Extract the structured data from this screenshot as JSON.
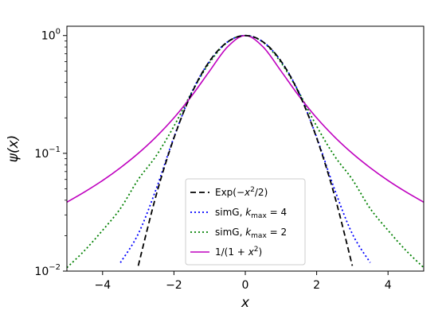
{
  "chart_data": {
    "type": "line",
    "xlabel": "x",
    "ylabel": "ψ(x)",
    "xscale": "linear",
    "yscale": "log",
    "xlim": [
      -5,
      5
    ],
    "ylim": [
      0.01,
      1.2
    ],
    "grid": false,
    "legend_position": "bottom-center",
    "x_ticks": [
      -4,
      -2,
      0,
      2,
      4
    ],
    "x_tick_labels": [
      "−4",
      "−2",
      "0",
      "2",
      "4"
    ],
    "y_ticks": [
      0.01,
      0.1,
      1
    ],
    "y_tick_label_bases": [
      "10",
      "10",
      "10"
    ],
    "y_tick_label_exponents": [
      "−2",
      "−1",
      "0"
    ],
    "x": [
      -5,
      -4.5,
      -4,
      -3.5,
      -3,
      -2.5,
      -2,
      -1.5,
      -1,
      -0.5,
      0,
      0.5,
      1,
      1.5,
      2,
      2.5,
      3,
      3.5,
      4,
      4.5,
      5
    ],
    "series": [
      {
        "name": "Exp(−x²/2)",
        "color": "#000000",
        "dash": "dashed",
        "values": [
          null,
          null,
          null,
          null,
          0.0111,
          0.0439,
          0.135,
          0.325,
          0.607,
          0.882,
          1.0,
          0.882,
          0.607,
          0.325,
          0.135,
          0.0439,
          0.0111,
          null,
          null,
          null,
          null
        ]
      },
      {
        "name": "simG, k_max = 4",
        "color": "#0000ff",
        "dash": "dotted",
        "values": [
          null,
          null,
          null,
          0.0118,
          0.0207,
          0.0496,
          0.137,
          0.33,
          0.607,
          0.882,
          1.0,
          0.882,
          0.607,
          0.33,
          0.137,
          0.0496,
          0.0207,
          0.0118,
          null,
          null,
          null
        ]
      },
      {
        "name": "simG, k_max = 2",
        "color": "#008000",
        "dash": "dotted",
        "values": [
          0.0107,
          0.015,
          0.0222,
          0.034,
          0.06,
          0.095,
          0.17,
          0.33,
          0.59,
          0.878,
          1.0,
          0.878,
          0.59,
          0.33,
          0.17,
          0.095,
          0.06,
          0.034,
          0.0222,
          0.015,
          0.0107
        ]
      },
      {
        "name": "1/(1 + x²)",
        "color": "#bf00bf",
        "dash": "solid",
        "values": [
          0.0385,
          0.0471,
          0.0588,
          0.0755,
          0.1,
          0.138,
          0.2,
          0.308,
          0.5,
          0.8,
          1.0,
          0.8,
          0.5,
          0.308,
          0.2,
          0.138,
          0.1,
          0.0755,
          0.0588,
          0.0471,
          0.0385
        ]
      }
    ],
    "legend": {
      "entries": [
        {
          "prefix": "Exp(−",
          "var": "x",
          "sup": "2",
          "suffix": "/2)"
        },
        {
          "prefix": "simG, ",
          "var": "k",
          "sub": "max",
          "suffix": " = 4"
        },
        {
          "prefix": "simG, ",
          "var": "k",
          "sub": "max",
          "suffix": " = 2"
        },
        {
          "prefix": "1/(1 + ",
          "var": "x",
          "sup": "2",
          "suffix": ")"
        }
      ]
    }
  }
}
